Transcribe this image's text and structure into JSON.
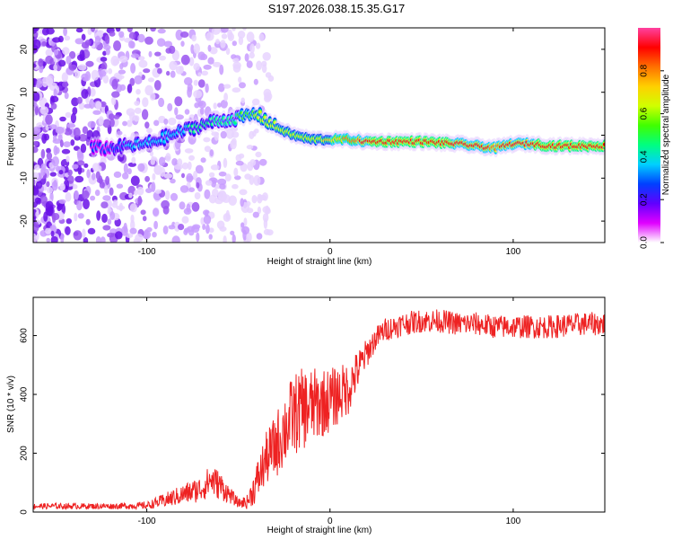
{
  "title": "S197.2026.038.15.35.G17",
  "chart_data": [
    {
      "type": "heatmap",
      "xlabel": "Height of straight line (km)",
      "ylabel": "Frequency (Hz)",
      "xlim": [
        -162,
        150
      ],
      "ylim": [
        -25,
        25
      ],
      "xticks": [
        -100,
        0,
        100
      ],
      "yticks": [
        -20,
        -10,
        0,
        10,
        20
      ],
      "colorbar": {
        "label": "Normalized spectral amplitude",
        "range": [
          0,
          1
        ],
        "ticks": [
          "0.0",
          "0.2",
          "0.4",
          "0.6",
          "0.8"
        ],
        "colormap": [
          "#ffffff",
          "#e000ff",
          "#6000ff",
          "#0040ff",
          "#00d0ff",
          "#00ff80",
          "#40ff00",
          "#d0ff00",
          "#ffd000",
          "#ff7000",
          "#ff0000",
          "#ff40a0"
        ]
      },
      "ridge": {
        "x": [
          -120,
          -100,
          -80,
          -65,
          -50,
          -40,
          -30,
          -20,
          -10,
          0,
          10,
          20,
          30,
          50,
          70,
          80,
          90,
          100,
          110,
          120,
          150
        ],
        "frequency": [
          -3,
          -2,
          1,
          3,
          4,
          5,
          2,
          0,
          -1,
          -1,
          -1,
          -1.5,
          -1.5,
          -1.5,
          -2,
          -2.5,
          -3,
          -2,
          -2,
          -2.5,
          -2.5
        ],
        "amplitude": [
          0.3,
          0.35,
          0.4,
          0.45,
          0.5,
          0.6,
          0.65,
          0.6,
          0.65,
          0.7,
          0.8,
          0.9,
          0.95,
          0.95,
          0.9,
          0.9,
          0.85,
          0.9,
          0.9,
          0.95,
          0.95
        ]
      }
    },
    {
      "type": "line",
      "xlabel": "Height of straight line (km)",
      "ylabel": "SNR (10 * v/v)",
      "xlim": [
        -162,
        150
      ],
      "ylim": [
        0,
        730
      ],
      "xticks": [
        -100,
        0,
        100
      ],
      "yticks": [
        0,
        200,
        400,
        600
      ],
      "series": [
        {
          "name": "SNR",
          "color": "#ee2222",
          "x": [
            -162,
            -140,
            -120,
            -100,
            -90,
            -80,
            -70,
            -65,
            -60,
            -55,
            -50,
            -45,
            -40,
            -35,
            -30,
            -25,
            -20,
            -15,
            -10,
            -5,
            0,
            5,
            10,
            15,
            20,
            25,
            30,
            40,
            50,
            60,
            70,
            80,
            90,
            100,
            110,
            120,
            130,
            140,
            150
          ],
          "y": [
            20,
            20,
            20,
            22,
            40,
            60,
            80,
            110,
            90,
            60,
            30,
            35,
            100,
            180,
            220,
            280,
            330,
            350,
            360,
            370,
            380,
            400,
            420,
            480,
            540,
            590,
            620,
            640,
            650,
            650,
            640,
            640,
            630,
            630,
            630,
            630,
            635,
            640,
            640
          ],
          "noise_amplitude": [
            10,
            10,
            10,
            12,
            25,
            35,
            45,
            55,
            50,
            30,
            15,
            25,
            70,
            90,
            110,
            130,
            140,
            140,
            130,
            120,
            110,
            100,
            90,
            70,
            50,
            40,
            40,
            40,
            40,
            40,
            40,
            40,
            40,
            40,
            40,
            40,
            40,
            40,
            40
          ]
        }
      ]
    }
  ]
}
